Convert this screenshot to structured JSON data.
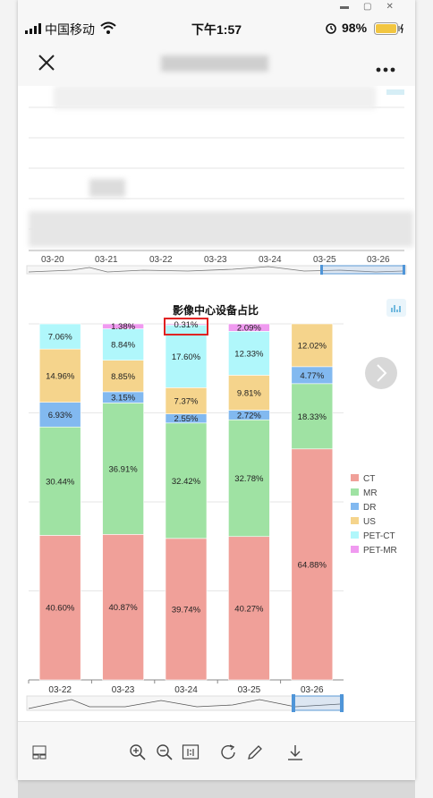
{
  "status_bar": {
    "carrier": "中国移动",
    "time": "下午1:57",
    "battery": "98%"
  },
  "top_chart": {
    "x_labels": [
      "03-20",
      "03-21",
      "03-22",
      "03-23",
      "03-24",
      "03-25",
      "03-26"
    ]
  },
  "chart_data": {
    "type": "bar",
    "title": "影像中心设备占比",
    "categories": [
      "03-22",
      "03-23",
      "03-24",
      "03-25",
      "03-26"
    ],
    "series": [
      {
        "name": "CT",
        "color": "#f0a099",
        "values": [
          40.6,
          40.87,
          39.74,
          40.27,
          64.88
        ],
        "labels": [
          "40.60%",
          "40.87%",
          "39.74%",
          "40.27%",
          "64.88%"
        ]
      },
      {
        "name": "MR",
        "color": "#9fe2a3",
        "values": [
          30.44,
          36.91,
          32.42,
          32.78,
          18.33
        ],
        "labels": [
          "30.44%",
          "36.91%",
          "32.42%",
          "32.78%",
          "18.33%"
        ]
      },
      {
        "name": "DR",
        "color": "#82b9f0",
        "values": [
          6.93,
          3.15,
          2.55,
          2.72,
          4.77
        ],
        "labels": [
          "6.93%",
          "3.15%",
          "2.55%",
          "2.72%",
          "4.77%"
        ]
      },
      {
        "name": "US",
        "color": "#f5d48c",
        "values": [
          14.96,
          8.85,
          7.37,
          9.81,
          12.02
        ],
        "labels": [
          "14.96%",
          "8.85%",
          "7.37%",
          "9.81%",
          "12.02%"
        ]
      },
      {
        "name": "PET-CT",
        "color": "#b0f7fb",
        "values": [
          7.06,
          8.84,
          17.6,
          12.33,
          0
        ],
        "labels": [
          "7.06%",
          "8.84%",
          "17.60%",
          "12.33%",
          ""
        ]
      },
      {
        "name": "PET-MR",
        "color": "#f09af0",
        "values": [
          0,
          1.38,
          0.31,
          2.09,
          0
        ],
        "labels": [
          "",
          "1.38%",
          "0.31%",
          "2.09%",
          ""
        ]
      }
    ],
    "ylim": [
      0,
      100
    ],
    "legend": "right",
    "highlight_label": "0.31%"
  }
}
